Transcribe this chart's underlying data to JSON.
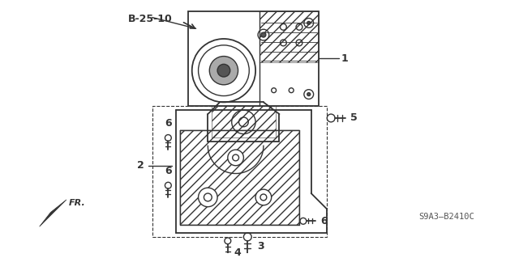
{
  "bg_color": "#ffffff",
  "line_color": "#333333",
  "title_code": "B-25-10",
  "part_label_1": "1",
  "part_label_2": "2",
  "part_label_3": "3",
  "part_label_4": "4",
  "part_label_5": "5",
  "part_label_6": "6",
  "diagram_code": "S9A3–B2410C",
  "fr_label": "FR.",
  "figsize": [
    6.4,
    3.19
  ],
  "dpi": 100
}
